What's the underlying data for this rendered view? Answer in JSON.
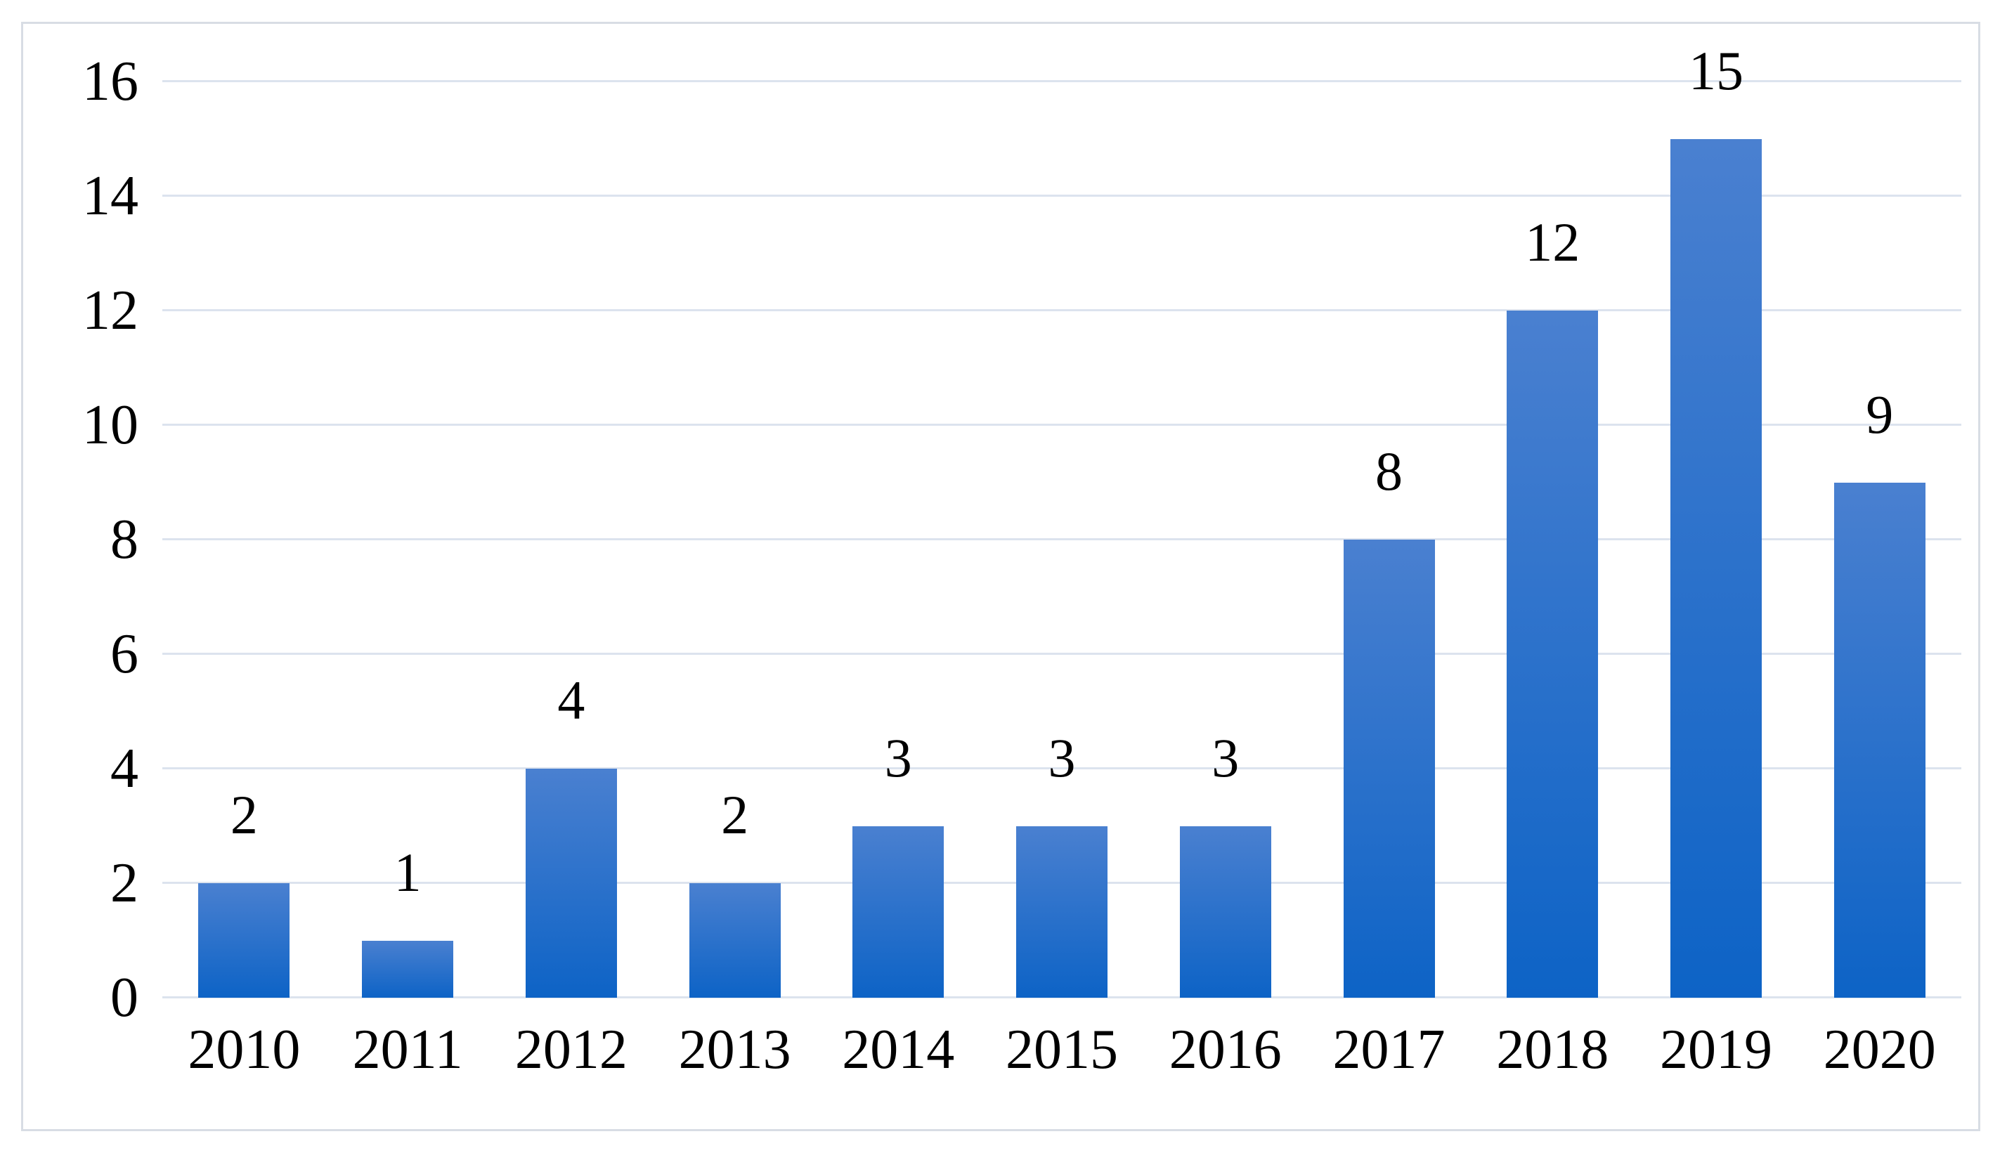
{
  "chart_data": {
    "type": "bar",
    "categories": [
      "2010",
      "2011",
      "2012",
      "2013",
      "2014",
      "2015",
      "2016",
      "2017",
      "2018",
      "2019",
      "2020"
    ],
    "values": [
      2,
      1,
      4,
      2,
      3,
      3,
      3,
      8,
      12,
      15,
      9
    ],
    "data_labels": [
      "2",
      "1",
      "4",
      "2",
      "3",
      "3",
      "3",
      "8",
      "12",
      "15",
      "9"
    ],
    "title": "",
    "xlabel": "",
    "ylabel": "",
    "ylim": [
      0,
      16
    ],
    "yticks": [
      "0",
      "2",
      "4",
      "6",
      "8",
      "10",
      "12",
      "14",
      "16"
    ],
    "grid": true,
    "legend": false
  },
  "colors": {
    "bar_gradient_top": "#4a80d0",
    "bar_gradient_bottom": "#0d63c6",
    "gridline": "#dce3ee",
    "frame_border": "#d8dde4",
    "text": "#000000",
    "background": "#ffffff"
  }
}
